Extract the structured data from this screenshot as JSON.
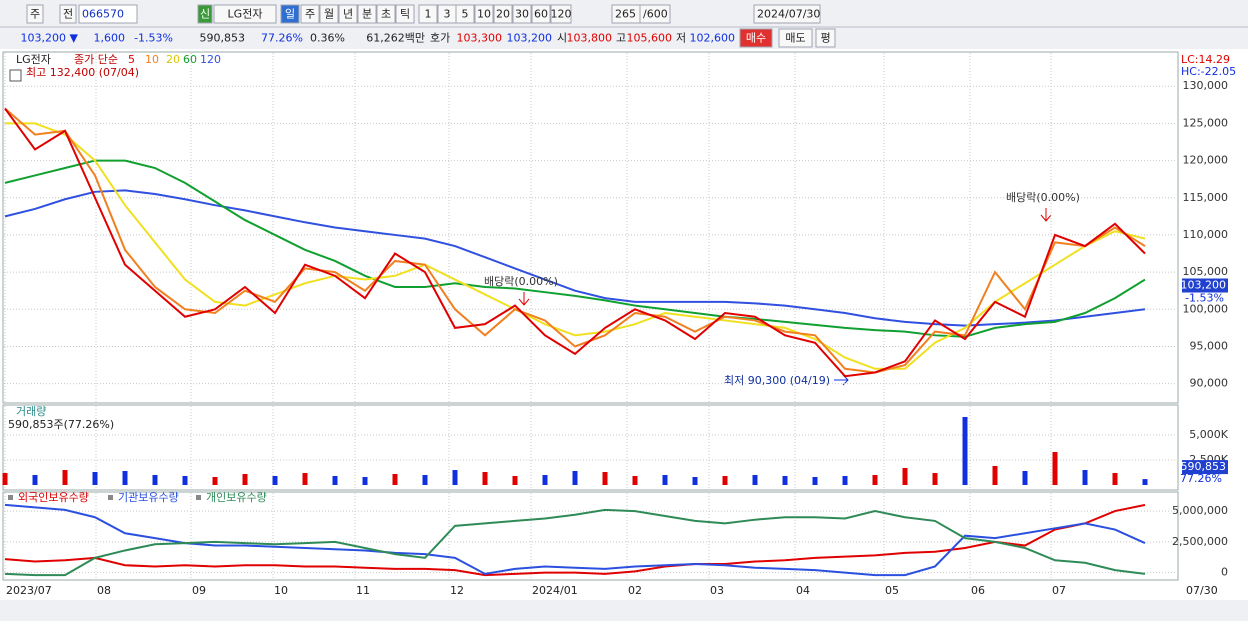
{
  "toolbar": {
    "items": [
      "주",
      "전",
      "066570",
      "신",
      "LG전자",
      "일",
      "주",
      "월",
      "년",
      "분",
      "초",
      "틱",
      "1",
      "3",
      "5",
      "10",
      "20",
      "30",
      "60",
      "120",
      "265",
      "/600",
      "2024/07/30"
    ]
  },
  "info_bar": {
    "items": [
      "103,200 ▼",
      "1,600",
      "-1.53%",
      "590,853",
      "77.26%",
      "0.36%",
      "61,262백만",
      "호가",
      "103,300",
      "103,200",
      "시",
      "103,800",
      "고",
      "105,600",
      "저",
      "102,600",
      "매수",
      "매도",
      "평"
    ]
  },
  "x_axis": {
    "labels": [
      "2023/07",
      "08",
      "09",
      "10",
      "11",
      "12",
      "2024/01",
      "02",
      "03",
      "04",
      "05",
      "06",
      "07"
    ],
    "end_label": "07/30"
  },
  "chart_data": [
    {
      "type": "line",
      "title": "LG전자",
      "legend_prefix": "종가 단순",
      "high_label": "최고 132,400 (07/04)",
      "low_label": "최저 90,300 (04/19)",
      "annotations": [
        "배당락(0.00%)",
        "배당락(0.00%)"
      ],
      "right_labels": [
        "LC:14.29",
        "HC:-22.05"
      ],
      "last_price": {
        "value": 103200,
        "label": "103,200"
      },
      "change_label": "-1.53%",
      "grid": true,
      "ylim": [
        87800,
        134200
      ],
      "yticks": [
        {
          "value": 90000,
          "label": "90,000"
        },
        {
          "value": 95000,
          "label": "95,000"
        },
        {
          "value": 100000,
          "label": "100,000"
        },
        {
          "value": 105000,
          "label": "105,000"
        },
        {
          "value": 110000,
          "label": "110,000"
        },
        {
          "value": 115000,
          "label": "115,000"
        },
        {
          "value": 120000,
          "label": "120,000"
        },
        {
          "value": 125000,
          "label": "125,000"
        },
        {
          "value": 130000,
          "label": "130,000"
        }
      ],
      "series": [
        {
          "name": "120",
          "color": "#3050e0",
          "values": [
            112500,
            113500,
            114800,
            115800,
            116000,
            115500,
            114800,
            114000,
            113300,
            112500,
            111700,
            111000,
            110500,
            110000,
            109500,
            108500,
            107000,
            105500,
            104000,
            102500,
            101500,
            101000,
            101000,
            101000,
            101000,
            100800,
            100500,
            100000,
            99500,
            98800,
            98300,
            98000,
            97800,
            98000,
            98200,
            98500,
            99000,
            99500,
            100000
          ]
        },
        {
          "name": "60",
          "color": "#10a030",
          "values": [
            117000,
            118000,
            119000,
            120000,
            120000,
            119000,
            117000,
            114500,
            112000,
            110000,
            108000,
            106500,
            104500,
            103000,
            103000,
            103500,
            103000,
            102800,
            102300,
            101800,
            101200,
            100500,
            100000,
            99500,
            99000,
            98700,
            98300,
            97900,
            97500,
            97200,
            97000,
            96500,
            96300,
            97500,
            98000,
            98300,
            99500,
            101500,
            104000
          ]
        },
        {
          "name": "20",
          "color": "#f0e020",
          "values": [
            125000,
            125000,
            123500,
            120000,
            114000,
            109000,
            104000,
            101000,
            100500,
            102000,
            103500,
            104500,
            104000,
            104500,
            106000,
            104000,
            102000,
            100000,
            98000,
            96500,
            97000,
            98000,
            99500,
            99000,
            98500,
            98000,
            97500,
            96000,
            93500,
            92000,
            92000,
            95500,
            97500,
            101000,
            103500,
            106000,
            108500,
            110500,
            109500
          ]
        },
        {
          "name": "10",
          "color": "#f08020",
          "values": [
            127000,
            123500,
            124000,
            118000,
            108000,
            103000,
            100000,
            99500,
            102500,
            101000,
            105500,
            105000,
            102500,
            106500,
            106000,
            100000,
            96500,
            100000,
            98500,
            95000,
            96500,
            99500,
            99000,
            97000,
            99000,
            98500,
            97000,
            96500,
            92000,
            91500,
            92500,
            97000,
            96500,
            105000,
            100000,
            109000,
            108500,
            111000,
            108500
          ]
        },
        {
          "name": "5",
          "color": "#e00000",
          "values": [
            127000,
            121500,
            124000,
            115000,
            106000,
            102500,
            99000,
            100000,
            103000,
            99500,
            106000,
            104500,
            101500,
            107500,
            105000,
            97500,
            98000,
            100500,
            96500,
            94000,
            97500,
            100000,
            98500,
            96000,
            99500,
            99000,
            96500,
            95500,
            91000,
            91500,
            93000,
            98500,
            96000,
            101000,
            99000,
            110000,
            108500,
            111500,
            107500
          ]
        }
      ]
    },
    {
      "type": "bar",
      "title": "거래량",
      "info": "590,853주(77.26%)",
      "last_value_label": "590,853",
      "pct_label": "77.26%",
      "up_color": "#e00000",
      "down_color": "#1030e0",
      "grid": true,
      "ylim": [
        0,
        7000000
      ],
      "yticks": [
        {
          "value": 2500000,
          "label": "2,500K"
        },
        {
          "value": 5000000,
          "label": "5,000K"
        }
      ],
      "values": [
        1200000,
        1000000,
        1500000,
        1300000,
        1400000,
        1000000,
        900000,
        800000,
        1100000,
        900000,
        1200000,
        900000,
        800000,
        1100000,
        1000000,
        1500000,
        1300000,
        900000,
        1000000,
        1400000,
        1300000,
        900000,
        1000000,
        800000,
        900000,
        1000000,
        900000,
        800000,
        900000,
        1000000,
        1700000,
        1200000,
        6800000,
        1900000,
        1400000,
        3300000,
        1500000,
        1200000,
        590853
      ]
    },
    {
      "type": "line",
      "grid": true,
      "ylim": [
        -600000,
        5900000
      ],
      "yticks": [
        0,
        {
          "value": 2500000,
          "label": "2,500,000"
        },
        {
          "value": 5000000,
          "label": "5,000,000"
        }
      ],
      "series": [
        {
          "name": "외국인보유수량",
          "color": "#e00000",
          "values": [
            1100000,
            900000,
            1000000,
            1200000,
            600000,
            500000,
            600000,
            500000,
            600000,
            600000,
            500000,
            500000,
            400000,
            300000,
            300000,
            200000,
            -200000,
            -100000,
            0,
            0,
            -100000,
            100000,
            500000,
            700000,
            700000,
            900000,
            1000000,
            1200000,
            1300000,
            1400000,
            1600000,
            1700000,
            2000000,
            2500000,
            2200000,
            3500000,
            4000000,
            5000000,
            5500000
          ]
        },
        {
          "name": "기관보유수량",
          "color": "#2b50e0",
          "values": [
            5500000,
            5300000,
            5100000,
            4500000,
            3200000,
            2800000,
            2400000,
            2200000,
            2200000,
            2100000,
            2000000,
            1900000,
            1800000,
            1600000,
            1500000,
            1200000,
            -100000,
            300000,
            500000,
            400000,
            300000,
            500000,
            600000,
            700000,
            600000,
            400000,
            300000,
            200000,
            0,
            -200000,
            -200000,
            500000,
            3000000,
            2800000,
            3200000,
            3600000,
            4000000,
            3500000,
            2400000
          ]
        },
        {
          "name": "개인보유수량",
          "color": "#2e8b57",
          "values": [
            -100000,
            -200000,
            -200000,
            1200000,
            1800000,
            2300000,
            2400000,
            2500000,
            2400000,
            2300000,
            2400000,
            2500000,
            2000000,
            1500000,
            1200000,
            3800000,
            4000000,
            4200000,
            4400000,
            4700000,
            5100000,
            5000000,
            4600000,
            4200000,
            4000000,
            4300000,
            4500000,
            4500000,
            4400000,
            5000000,
            4500000,
            4200000,
            2800000,
            2500000,
            2000000,
            1000000,
            800000,
            200000,
            -100000
          ]
        }
      ]
    }
  ]
}
